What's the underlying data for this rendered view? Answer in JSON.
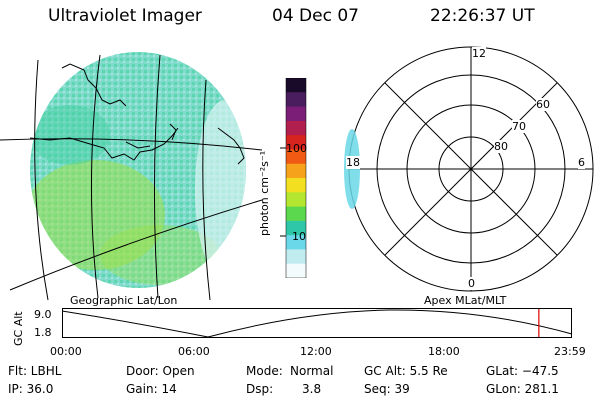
{
  "header": {
    "instrument": "Ultraviolet Imager",
    "date": "04 Dec 07",
    "time": "22:26:37 UT"
  },
  "colorbar": {
    "unit_label": "photon cm⁻²s⁻¹",
    "ticks": [
      "100",
      "10"
    ],
    "colors": [
      "#1a0a2a",
      "#4a1e5e",
      "#7a1e78",
      "#b01f4e",
      "#d8241e",
      "#f05a12",
      "#f6a21a",
      "#f2e020",
      "#b4e630",
      "#5cd84e",
      "#2ec8a8",
      "#6ad8e8",
      "#c0ecf0",
      "#f4fbfc"
    ]
  },
  "geo_panel": {
    "label": "Geographic Lat/Lon",
    "fill_color": "#6fd6c2"
  },
  "polar_panel": {
    "label": "Apex MLat/MLT",
    "mlt_labels": [
      "12",
      "6",
      "18",
      "0"
    ],
    "lat_labels": [
      "60",
      "70",
      "80"
    ]
  },
  "altitude_plot": {
    "ylabel": "GC Alt",
    "yticks": [
      "9.0",
      "1.8"
    ],
    "xticks": [
      "00:00",
      "06:00",
      "12:00",
      "18:00",
      "23:59"
    ],
    "marker_color": "#e00000",
    "marker_time_hours": 22.44
  },
  "info": {
    "filter": "Flt: LBHL",
    "door": "Door: Open",
    "mode_label": "Mode:",
    "mode_value": "Normal",
    "gc_alt": "GC Alt: 5.5 Re",
    "glat": "GLat: −47.5",
    "ip": "IP: 36.0",
    "gain": "Gain: 14",
    "dsp_label": "Dsp:",
    "dsp_value": "3.8",
    "seq": "Seq: 39",
    "glon": "GLon: 281.1"
  }
}
